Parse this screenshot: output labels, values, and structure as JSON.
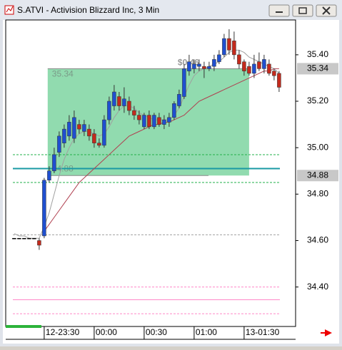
{
  "title": "S.ATVI - Activision Blizzard Inc, 3 Min",
  "chart_data": {
    "type": "candlestick",
    "x": [
      0,
      1,
      2,
      3,
      4,
      5,
      6,
      7,
      8,
      9,
      10,
      11,
      12,
      13,
      14,
      15,
      16,
      17,
      18,
      19,
      20,
      21,
      22,
      23,
      24,
      25,
      26,
      27,
      28,
      29,
      30,
      31,
      32,
      33,
      34,
      35,
      36,
      37,
      38,
      39,
      40,
      41,
      42,
      43,
      44,
      45,
      46,
      47,
      48,
      49,
      50,
      51,
      52,
      53
    ],
    "open": [
      34.61,
      34.61,
      34.61,
      34.61,
      34.61,
      34.6,
      34.62,
      34.86,
      34.9,
      34.98,
      35.02,
      35.05,
      35.04,
      35.1,
      35.07,
      35.08,
      35.06,
      35.02,
      35.01,
      35.12,
      35.18,
      35.22,
      35.18,
      35.2,
      35.16,
      35.14,
      35.09,
      35.14,
      35.09,
      35.13,
      35.1,
      35.11,
      35.13,
      35.18,
      35.22,
      35.33,
      35.34,
      35.35,
      35.35,
      35.34,
      35.35,
      35.37,
      35.4,
      35.47,
      35.46,
      35.4,
      35.37,
      35.35,
      35.32,
      35.37,
      35.34,
      35.36,
      35.33,
      35.32
    ],
    "high": [
      34.61,
      34.61,
      34.61,
      34.61,
      34.61,
      34.61,
      34.87,
      34.92,
      35.0,
      35.07,
      35.1,
      35.14,
      35.16,
      35.12,
      35.12,
      35.1,
      35.08,
      35.04,
      35.14,
      35.22,
      35.27,
      35.24,
      35.26,
      35.22,
      35.18,
      35.16,
      35.15,
      35.16,
      35.15,
      35.15,
      35.14,
      35.15,
      35.2,
      35.25,
      35.36,
      35.4,
      35.38,
      35.38,
      35.37,
      35.37,
      35.4,
      35.42,
      35.49,
      35.51,
      35.5,
      35.42,
      35.38,
      35.37,
      35.4,
      35.41,
      35.4,
      35.38,
      35.34,
      35.33
    ],
    "low": [
      34.61,
      34.61,
      34.61,
      34.61,
      34.61,
      34.56,
      34.61,
      34.85,
      34.89,
      34.96,
      35.0,
      35.03,
      35.02,
      35.06,
      35.05,
      35.03,
      35.0,
      35.0,
      35.0,
      35.1,
      35.16,
      35.16,
      35.15,
      35.14,
      35.12,
      35.1,
      35.08,
      35.08,
      35.08,
      35.09,
      35.08,
      35.09,
      35.12,
      35.17,
      35.21,
      35.31,
      35.32,
      35.33,
      35.3,
      35.33,
      35.33,
      35.36,
      35.39,
      35.4,
      35.38,
      35.34,
      35.31,
      35.31,
      35.3,
      35.33,
      35.32,
      35.31,
      35.29,
      35.24
    ],
    "close": [
      34.61,
      34.61,
      34.61,
      34.61,
      34.61,
      34.58,
      34.86,
      34.9,
      34.97,
      35.05,
      35.08,
      35.11,
      35.13,
      35.08,
      35.1,
      35.05,
      35.02,
      35.01,
      35.12,
      35.2,
      35.24,
      35.18,
      35.21,
      35.16,
      35.14,
      35.12,
      35.14,
      35.09,
      35.14,
      35.1,
      35.12,
      35.13,
      35.19,
      35.23,
      35.34,
      35.37,
      35.36,
      35.36,
      35.34,
      35.35,
      35.38,
      35.4,
      35.47,
      35.42,
      35.4,
      35.36,
      35.33,
      35.32,
      35.36,
      35.34,
      35.38,
      35.32,
      35.31,
      35.26
    ],
    "up_color": "#1f4fd0",
    "down_color": "#c42a1c",
    "flat_color": "#000000",
    "lines": [
      {
        "color": "#a0a0a0",
        "values": [
          34.63,
          34.62,
          34.62,
          34.61,
          34.61,
          34.61,
          34.66,
          34.72,
          34.8,
          34.88,
          34.95,
          35.0,
          35.04,
          35.06,
          35.07,
          35.07,
          35.06,
          35.05,
          35.06,
          35.09,
          35.13,
          35.16,
          35.18,
          35.18,
          35.17,
          35.15,
          35.14,
          35.13,
          35.12,
          35.12,
          35.12,
          35.12,
          35.14,
          35.17,
          35.22,
          35.27,
          35.31,
          35.33,
          35.34,
          35.35,
          35.36,
          35.37,
          35.39,
          35.41,
          35.42,
          35.42,
          35.41,
          35.39,
          35.38,
          35.37,
          35.36,
          35.35,
          35.34,
          35.32
        ]
      },
      {
        "color": "#b04050",
        "values": [
          null,
          null,
          null,
          null,
          null,
          null,
          34.64,
          34.67,
          34.7,
          34.73,
          34.76,
          34.79,
          34.82,
          34.85,
          34.87,
          34.89,
          34.91,
          34.93,
          34.95,
          34.97,
          34.99,
          35.01,
          35.03,
          35.05,
          35.06,
          35.07,
          35.08,
          35.09,
          35.1,
          35.1,
          35.11,
          35.11,
          35.12,
          35.13,
          35.14,
          35.16,
          35.18,
          35.2,
          35.21,
          35.22,
          35.23,
          35.24,
          35.25,
          35.26,
          35.27,
          35.28,
          35.29,
          35.3,
          35.31,
          35.32,
          35.33,
          35.33,
          35.34,
          35.34
        ]
      }
    ],
    "levels": [
      {
        "value": 34.97,
        "color": "#22b04a",
        "style": "dashed"
      },
      {
        "value": 34.91,
        "color": "#1a9aa4",
        "style": "solid"
      },
      {
        "value": 34.85,
        "color": "#22b04a",
        "style": "dashed"
      },
      {
        "value": 34.625,
        "color": "#a0a0a0",
        "style": "dashed"
      },
      {
        "value": 34.4,
        "color": "#ff88c8",
        "style": "dashed"
      },
      {
        "value": 34.345,
        "color": "#ff88c8",
        "style": "solid"
      },
      {
        "value": 34.285,
        "color": "#ff88c8",
        "style": "dashed"
      }
    ],
    "box": {
      "x": [
        6.7,
        47
      ],
      "top": 35.34,
      "bottom": 34.88,
      "color": "#6ccf94",
      "change_label": "$0.46"
    },
    "price_markers": [
      35.34,
      34.88
    ],
    "xlim": [
      -1.7,
      56.3
    ],
    "xticks": [
      {
        "value": 6,
        "label": "12-23:30"
      },
      {
        "value": 16,
        "label": "00:00"
      },
      {
        "value": 26,
        "label": "00:30"
      },
      {
        "value": 36,
        "label": "01:00"
      },
      {
        "value": 46,
        "label": "13-01:30"
      }
    ],
    "ylim": [
      34.23,
      35.55
    ],
    "yticks": [
      {
        "value": 34.4,
        "label": "34.40"
      },
      {
        "value": 34.6,
        "label": "34.60"
      },
      {
        "value": 34.8,
        "label": "34.80"
      },
      {
        "value": 35.0,
        "label": "35.00"
      },
      {
        "value": 35.2,
        "label": "35.20"
      },
      {
        "value": 35.4,
        "label": "35.40"
      }
    ]
  }
}
